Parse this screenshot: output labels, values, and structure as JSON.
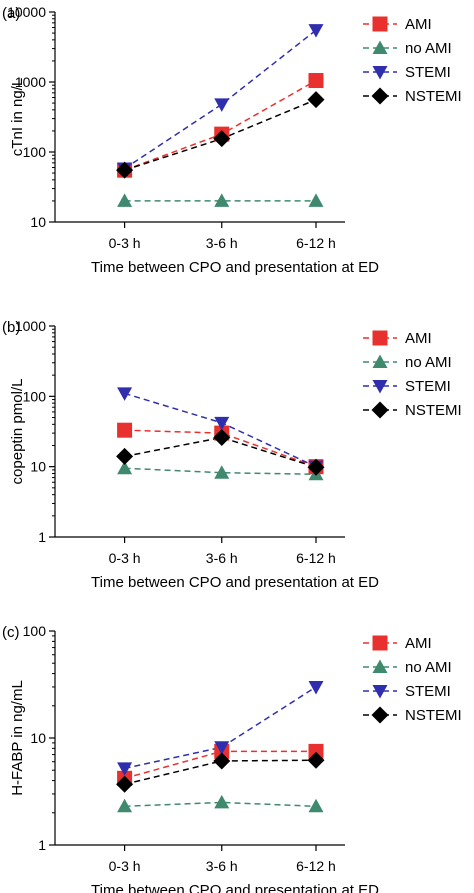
{
  "chart_data": [
    {
      "type": "line",
      "panel_label": "(a)",
      "categories": [
        "0-3 h",
        "3-6 h",
        "6-12 h"
      ],
      "xlabel": "Time between CPO and presentation at ED",
      "ylabel": "cTnI in ng/L",
      "yscale": "log",
      "ylim": [
        10,
        10000
      ],
      "ytick_labels": [
        "10",
        "100",
        "1000",
        "10000"
      ],
      "series": [
        {
          "name": "AMI",
          "values": [
            55,
            180,
            1050
          ],
          "color": "#e8312e",
          "marker": "square"
        },
        {
          "name": "no AMI",
          "values": [
            20,
            20,
            20
          ],
          "color": "#3f8a6e",
          "marker": "triangle-up"
        },
        {
          "name": "STEMI",
          "values": [
            58,
            480,
            5500
          ],
          "color": "#2f2fae",
          "marker": "triangle-down"
        },
        {
          "name": "NSTEMI",
          "values": [
            55,
            155,
            560
          ],
          "color": "#000000",
          "marker": "diamond"
        }
      ]
    },
    {
      "type": "line",
      "panel_label": "(b)",
      "categories": [
        "0-3 h",
        "3-6 h",
        "6-12 h"
      ],
      "xlabel": "Time between CPO and presentation at ED",
      "ylabel": "copeptin pmol/L",
      "yscale": "log",
      "ylim": [
        1,
        1000
      ],
      "ytick_labels": [
        "1",
        "10",
        "100",
        "1000"
      ],
      "series": [
        {
          "name": "AMI",
          "values": [
            33,
            30,
            10
          ],
          "color": "#e8312e",
          "marker": "square"
        },
        {
          "name": "no AMI",
          "values": [
            9.5,
            8.2,
            7.8
          ],
          "color": "#3f8a6e",
          "marker": "triangle-up"
        },
        {
          "name": "STEMI",
          "values": [
            110,
            42,
            10
          ],
          "color": "#2f2fae",
          "marker": "triangle-down"
        },
        {
          "name": "NSTEMI",
          "values": [
            14,
            26,
            9.8
          ],
          "color": "#000000",
          "marker": "diamond"
        }
      ]
    },
    {
      "type": "line",
      "panel_label": "(c)",
      "categories": [
        "0-3 h",
        "3-6 h",
        "6-12 h"
      ],
      "xlabel": "Time between CPO and presentation at ED",
      "ylabel": "H-FABP in ng/mL",
      "yscale": "log",
      "ylim": [
        1,
        100
      ],
      "ytick_labels": [
        "1",
        "10",
        "100"
      ],
      "series": [
        {
          "name": "AMI",
          "values": [
            4.2,
            7.5,
            7.5
          ],
          "color": "#e8312e",
          "marker": "square"
        },
        {
          "name": "no AMI",
          "values": [
            2.3,
            2.5,
            2.3
          ],
          "color": "#3f8a6e",
          "marker": "triangle-up"
        },
        {
          "name": "STEMI",
          "values": [
            5.2,
            8.2,
            30
          ],
          "color": "#2f2fae",
          "marker": "triangle-down"
        },
        {
          "name": "NSTEMI",
          "values": [
            3.7,
            6.1,
            6.2
          ],
          "color": "#000000",
          "marker": "diamond"
        }
      ]
    }
  ]
}
